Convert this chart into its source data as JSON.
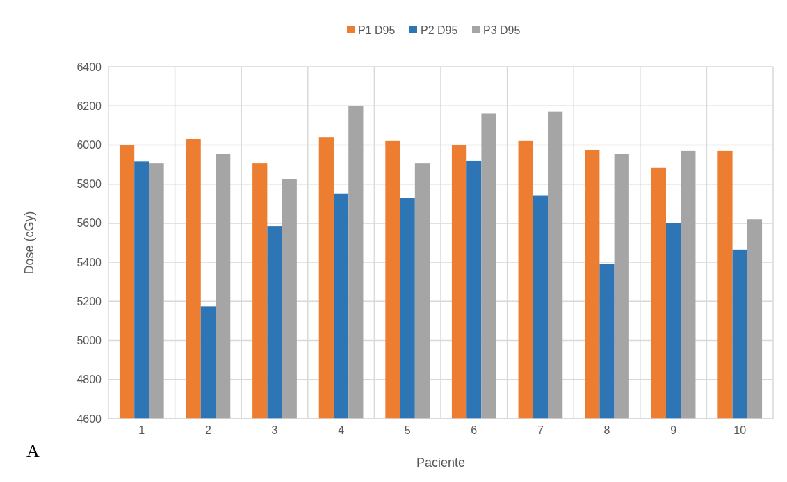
{
  "chart_data": {
    "type": "bar",
    "xlabel": "Paciente",
    "ylabel": "Dose (cGy)",
    "categories": [
      "1",
      "2",
      "3",
      "4",
      "5",
      "6",
      "7",
      "8",
      "9",
      "10"
    ],
    "series": [
      {
        "name": "P1 D95",
        "color": "#ed7d31",
        "values": [
          6000,
          6030,
          5905,
          6040,
          6020,
          6000,
          6020,
          5975,
          5885,
          5970
        ]
      },
      {
        "name": "P2 D95",
        "color": "#2e75b6",
        "values": [
          5915,
          5175,
          5585,
          5750,
          5730,
          5920,
          5740,
          5390,
          5600,
          5465
        ]
      },
      {
        "name": "P3 D95",
        "color": "#a5a5a5",
        "values": [
          5905,
          5955,
          5825,
          6200,
          5905,
          6160,
          6170,
          5955,
          5970,
          5620
        ]
      }
    ],
    "ylim": [
      4600,
      6400
    ],
    "yticks": [
      4600,
      4800,
      5000,
      5200,
      5400,
      5600,
      5800,
      6000,
      6200,
      6400
    ],
    "grid": true,
    "legend": "top",
    "annotations": [
      "A"
    ]
  }
}
